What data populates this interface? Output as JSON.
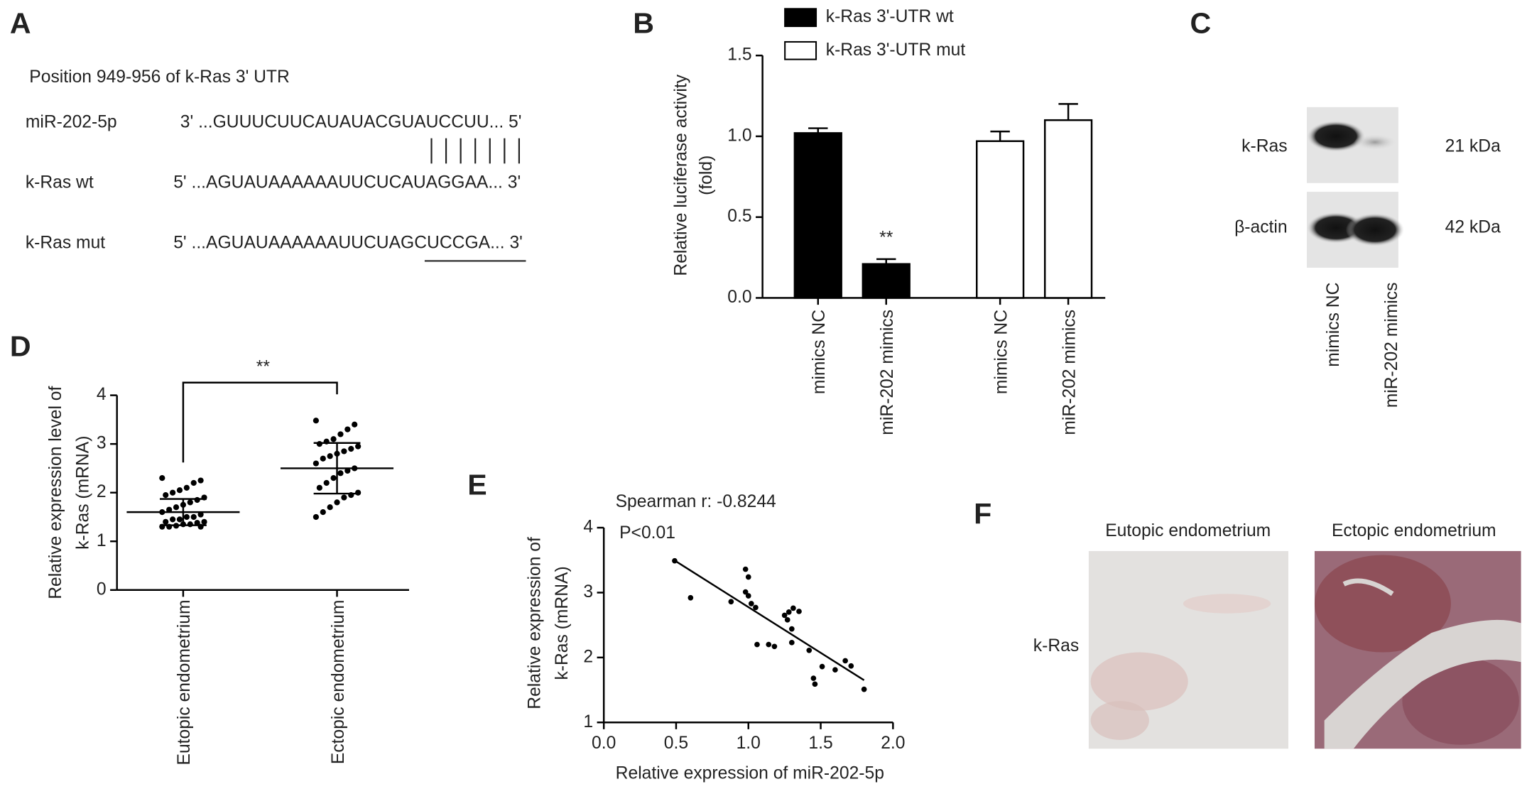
{
  "panel_a": {
    "label": "A",
    "title": "Position 949-956 of k-Ras 3' UTR",
    "rows": [
      {
        "name": "miR-202-5p",
        "sequence": "3' ...GUUUCUUCAUAUACGUAUCCUU... 5'"
      },
      {
        "name": "k-Ras wt",
        "sequence": "5' ...AGUAUAAAAAAUUCUCAUAGGAA... 3'"
      },
      {
        "name": "k-Ras mut",
        "sequence": "5' ...AGUAUAAAAAAUUCUAGCUCCGA... 3'"
      }
    ]
  },
  "chart_data": [
    {
      "type": "bar",
      "panel": "B",
      "ylabel": [
        "Relative luciferase activity",
        "(fold)"
      ],
      "categories": [
        "mimics NC",
        "miR-202 mimics",
        "mimics NC",
        "miR-202 mimics"
      ],
      "series": [
        {
          "name": "k-Ras 3'-UTR wt",
          "color": "#000000",
          "values": [
            1.02,
            0.21,
            null,
            null
          ],
          "errors": [
            0.03,
            0.03,
            null,
            null
          ]
        },
        {
          "name": "k-Ras 3'-UTR mut",
          "color": "#ffffff",
          "values": [
            null,
            null,
            0.97,
            1.1
          ],
          "errors": [
            null,
            null,
            0.06,
            0.1
          ]
        }
      ],
      "annotation": "**",
      "ylim": [
        0,
        1.5
      ],
      "yticks": [
        {
          "value": 0,
          "label": "0.0"
        },
        {
          "value": 0.5,
          "label": "0.5"
        },
        {
          "value": 1,
          "label": "1.0"
        },
        {
          "value": 1.5,
          "label": "1.5"
        }
      ],
      "legend": "top"
    },
    {
      "type": "dotplot",
      "panel": "D",
      "ylabel": [
        "Relative expression level of",
        "k-Ras (mRNA)"
      ],
      "categories": [
        "Eutopic endometrium",
        "Ectopic endometrium"
      ],
      "points": [
        [
          2.3,
          2.25,
          2.2,
          2.1,
          2.05,
          2.0,
          1.95,
          1.9,
          1.85,
          1.8,
          1.75,
          1.7,
          1.65,
          1.6,
          1.55,
          1.5,
          1.5,
          1.45,
          1.45,
          1.4,
          1.4,
          1.38,
          1.35,
          1.35,
          1.32,
          1.3,
          1.3,
          1.3
        ],
        [
          3.48,
          3.4,
          3.3,
          3.2,
          3.1,
          3.05,
          3.0,
          2.95,
          2.9,
          2.85,
          2.8,
          2.75,
          2.7,
          2.6,
          2.5,
          2.45,
          2.4,
          2.3,
          2.2,
          2.1,
          2.0,
          1.95,
          1.9,
          1.8,
          1.7,
          1.6,
          1.5
        ]
      ],
      "means": [
        1.6,
        2.5
      ],
      "sd": [
        0.27,
        0.52
      ],
      "annotation": "**",
      "ylim": [
        0,
        4
      ],
      "yticks": [
        0,
        1,
        2,
        3,
        4
      ]
    },
    {
      "type": "scatter",
      "panel": "E",
      "xlabel": "Relative expression of miR-202-5p",
      "ylabel": [
        "Relative expression of",
        "k-Ras (mRNA)"
      ],
      "annotations": [
        "Spearman r: -0.8244",
        "P<0.01"
      ],
      "x": [
        0.49,
        0.6,
        0.88,
        0.98,
        1.0,
        0.98,
        1.0,
        1.02,
        1.05,
        1.06,
        1.14,
        1.18,
        1.25,
        1.27,
        1.28,
        1.31,
        1.35,
        1.3,
        1.3,
        1.42,
        1.45,
        1.46,
        1.51,
        1.6,
        1.67,
        1.71,
        1.8
      ],
      "y": [
        3.49,
        2.92,
        2.86,
        3.36,
        3.24,
        3.01,
        2.95,
        2.83,
        2.77,
        2.2,
        2.2,
        2.17,
        2.65,
        2.58,
        2.7,
        2.76,
        2.71,
        2.44,
        2.23,
        2.11,
        1.68,
        1.59,
        1.86,
        1.81,
        1.95,
        1.87,
        1.51
      ],
      "fit_line": {
        "x": [
          0.5,
          1.8
        ],
        "y": [
          3.48,
          1.65
        ]
      },
      "xlim": [
        0,
        2
      ],
      "xticks": [
        {
          "value": 0,
          "label": "0.0"
        },
        {
          "value": 0.5,
          "label": "0.5"
        },
        {
          "value": 1,
          "label": "1.0"
        },
        {
          "value": 1.5,
          "label": "1.5"
        },
        {
          "value": 2,
          "label": "2.0"
        }
      ],
      "ylim": [
        1,
        4
      ],
      "yticks": [
        1,
        2,
        3,
        4
      ]
    }
  ],
  "panel_c": {
    "label": "C",
    "bands": [
      "k-Ras",
      "β-actin"
    ],
    "sizes": [
      "21 kDa",
      "42 kDa"
    ],
    "lanes": [
      "mimics NC",
      "miR-202 mimics"
    ]
  },
  "panel_f": {
    "label": "F",
    "columns": [
      "Eutopic endometrium",
      "Ectopic endometrium"
    ],
    "row": "k-Ras"
  }
}
